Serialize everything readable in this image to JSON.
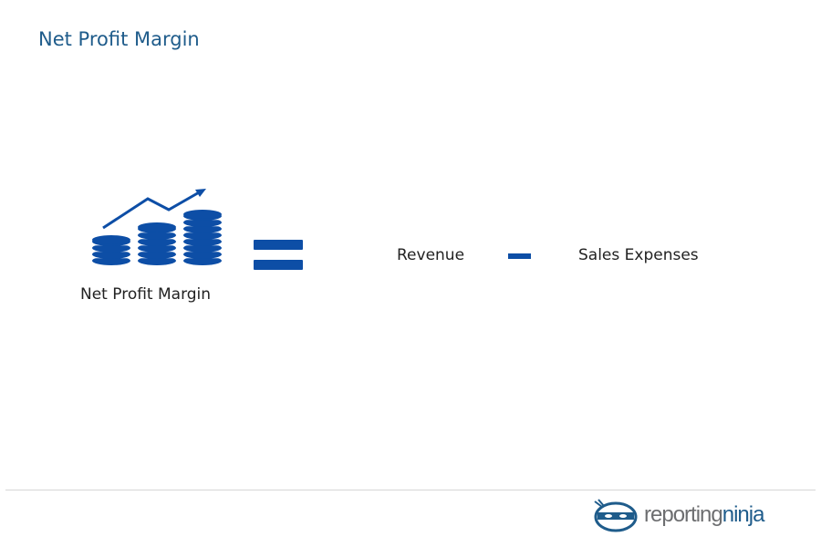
{
  "header": {
    "title": "Net Profit Margin"
  },
  "formula": {
    "result": "Net Profit Margin",
    "terms": [
      "Revenue",
      "Sales Expenses"
    ]
  },
  "logo": {
    "text_a": "reporting",
    "text_b": "ninja"
  }
}
